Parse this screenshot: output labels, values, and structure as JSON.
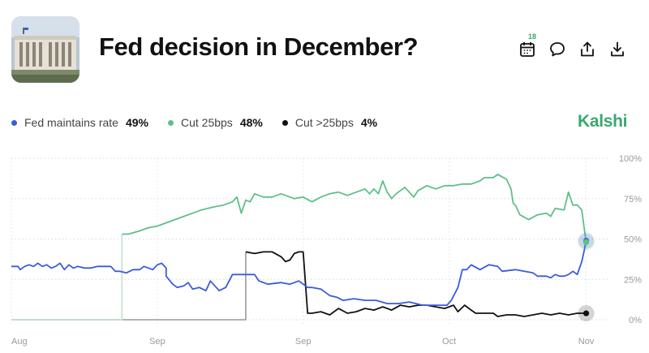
{
  "header": {
    "title": "Fed decision in December?",
    "calendar_badge": "18",
    "thumbnail_icon": "federal-reserve-building-photo"
  },
  "toolbar": {
    "icons": [
      "calendar-icon",
      "comment-icon",
      "share-icon",
      "download-icon"
    ]
  },
  "legend": [
    {
      "name": "Fed maintains rate",
      "value": "49%",
      "color": "#3b5bdb"
    },
    {
      "name": "Cut 25bps",
      "value": "48%",
      "color": "#5fbf8a"
    },
    {
      "name": "Cut >25bps",
      "value": "4%",
      "color": "#111111"
    }
  ],
  "brand": "Kalshi",
  "chart_data": {
    "type": "line",
    "title": "",
    "xlabel": "",
    "ylabel": "",
    "x_ticks": [
      "Aug",
      "Sep",
      "Sep",
      "Oct",
      "Nov"
    ],
    "y_ticks": [
      "0%",
      "25%",
      "50%",
      "75%",
      "100%"
    ],
    "ylim": [
      0,
      100
    ],
    "grid": true,
    "y_axis_side": "right",
    "series": [
      {
        "name": "Fed maintains rate",
        "color": "#3b5bdb",
        "points": [
          [
            0,
            33
          ],
          [
            3,
            33
          ],
          [
            4,
            31
          ],
          [
            6,
            33
          ],
          [
            8,
            34
          ],
          [
            10,
            33
          ],
          [
            12,
            35
          ],
          [
            14,
            33
          ],
          [
            16,
            34
          ],
          [
            18,
            32
          ],
          [
            20,
            33
          ],
          [
            22,
            35
          ],
          [
            24,
            31
          ],
          [
            26,
            34
          ],
          [
            28,
            32
          ],
          [
            30,
            33
          ],
          [
            33,
            32
          ],
          [
            36,
            32
          ],
          [
            39,
            33
          ],
          [
            42,
            33
          ],
          [
            45,
            33
          ],
          [
            47,
            30
          ],
          [
            49,
            30
          ],
          [
            52,
            29
          ],
          [
            55,
            31
          ],
          [
            58,
            31
          ],
          [
            60,
            33
          ],
          [
            62,
            32
          ],
          [
            64,
            31
          ],
          [
            66,
            34
          ],
          [
            68,
            35
          ],
          [
            70,
            32
          ],
          [
            70,
            27
          ],
          [
            73,
            22
          ],
          [
            75,
            20
          ],
          [
            78,
            21
          ],
          [
            80,
            23
          ],
          [
            82,
            19
          ],
          [
            85,
            20
          ],
          [
            88,
            18
          ],
          [
            90,
            24
          ],
          [
            92,
            21
          ],
          [
            94,
            18
          ],
          [
            97,
            20
          ],
          [
            100,
            28
          ],
          [
            105,
            28
          ],
          [
            110,
            28
          ],
          [
            112,
            24
          ],
          [
            116,
            22
          ],
          [
            122,
            23
          ],
          [
            126,
            22
          ],
          [
            130,
            24
          ],
          [
            134,
            20
          ],
          [
            136,
            20
          ],
          [
            140,
            19
          ],
          [
            144,
            15
          ],
          [
            147,
            14
          ],
          [
            150,
            12
          ],
          [
            155,
            13
          ],
          [
            160,
            12
          ],
          [
            165,
            12
          ],
          [
            170,
            10
          ],
          [
            175,
            10
          ],
          [
            180,
            11
          ],
          [
            183,
            10
          ],
          [
            186,
            9
          ],
          [
            190,
            9
          ],
          [
            197,
            9
          ],
          [
            199,
            12
          ],
          [
            202,
            20
          ],
          [
            204,
            31
          ],
          [
            206,
            31
          ],
          [
            208,
            34
          ],
          [
            212,
            31
          ],
          [
            216,
            34
          ],
          [
            220,
            33
          ],
          [
            222,
            30
          ],
          [
            228,
            31
          ],
          [
            236,
            29
          ],
          [
            238,
            27
          ],
          [
            242,
            27
          ],
          [
            244,
            26
          ],
          [
            246,
            28
          ],
          [
            248,
            27
          ],
          [
            250,
            27
          ],
          [
            252,
            28
          ],
          [
            254,
            30
          ],
          [
            256,
            28
          ],
          [
            258,
            36
          ],
          [
            259,
            42
          ],
          [
            260,
            49
          ]
        ]
      },
      {
        "name": "Cut 25bps",
        "color": "#5fbf8a",
        "points": [
          [
            0,
            0
          ],
          [
            50,
            0
          ],
          [
            50,
            53
          ],
          [
            53,
            53
          ],
          [
            58,
            55
          ],
          [
            62,
            57
          ],
          [
            66,
            58
          ],
          [
            70,
            60
          ],
          [
            74,
            62
          ],
          [
            78,
            64
          ],
          [
            82,
            66
          ],
          [
            86,
            68
          ],
          [
            92,
            70
          ],
          [
            96,
            71
          ],
          [
            100,
            73
          ],
          [
            102,
            76
          ],
          [
            104,
            66
          ],
          [
            106,
            74
          ],
          [
            108,
            73
          ],
          [
            110,
            78
          ],
          [
            114,
            76
          ],
          [
            118,
            76
          ],
          [
            122,
            78
          ],
          [
            128,
            75
          ],
          [
            132,
            76
          ],
          [
            136,
            73
          ],
          [
            140,
            76
          ],
          [
            144,
            78
          ],
          [
            148,
            79
          ],
          [
            152,
            77
          ],
          [
            156,
            79
          ],
          [
            160,
            81
          ],
          [
            162,
            78
          ],
          [
            164,
            81
          ],
          [
            166,
            78
          ],
          [
            168,
            86
          ],
          [
            170,
            79
          ],
          [
            172,
            75
          ],
          [
            174,
            78
          ],
          [
            178,
            82
          ],
          [
            180,
            79
          ],
          [
            182,
            76
          ],
          [
            184,
            80
          ],
          [
            188,
            83
          ],
          [
            192,
            81
          ],
          [
            196,
            83
          ],
          [
            200,
            83
          ],
          [
            204,
            84
          ],
          [
            208,
            84
          ],
          [
            212,
            86
          ],
          [
            214,
            88
          ],
          [
            218,
            88
          ],
          [
            220,
            90
          ],
          [
            224,
            87
          ],
          [
            226,
            81
          ],
          [
            227,
            72
          ],
          [
            228,
            71
          ],
          [
            230,
            65
          ],
          [
            234,
            62
          ],
          [
            238,
            65
          ],
          [
            242,
            66
          ],
          [
            244,
            64
          ],
          [
            246,
            69
          ],
          [
            250,
            68
          ],
          [
            252,
            79
          ],
          [
            254,
            71
          ],
          [
            256,
            71
          ],
          [
            258,
            68
          ],
          [
            260,
            48
          ]
        ]
      },
      {
        "name": "Cut >25bps",
        "color": "#111111",
        "points": [
          [
            0,
            0
          ],
          [
            106,
            0
          ],
          [
            106,
            42
          ],
          [
            110,
            41
          ],
          [
            114,
            42
          ],
          [
            118,
            42
          ],
          [
            122,
            39
          ],
          [
            124,
            36
          ],
          [
            126,
            37
          ],
          [
            128,
            41
          ],
          [
            130,
            42
          ],
          [
            132,
            42
          ],
          [
            134,
            4
          ],
          [
            136,
            4
          ],
          [
            140,
            5
          ],
          [
            144,
            3
          ],
          [
            148,
            7
          ],
          [
            152,
            4
          ],
          [
            156,
            5
          ],
          [
            160,
            7
          ],
          [
            164,
            6
          ],
          [
            168,
            8
          ],
          [
            172,
            6
          ],
          [
            176,
            9
          ],
          [
            180,
            8
          ],
          [
            184,
            9
          ],
          [
            188,
            9
          ],
          [
            192,
            8
          ],
          [
            196,
            7
          ],
          [
            200,
            9
          ],
          [
            202,
            5
          ],
          [
            205,
            9
          ],
          [
            208,
            6
          ],
          [
            210,
            4
          ],
          [
            214,
            4
          ],
          [
            218,
            4
          ],
          [
            220,
            2
          ],
          [
            224,
            3
          ],
          [
            228,
            3
          ],
          [
            232,
            2
          ],
          [
            236,
            3
          ],
          [
            240,
            4
          ],
          [
            244,
            3
          ],
          [
            248,
            4
          ],
          [
            252,
            3
          ],
          [
            256,
            4
          ],
          [
            260,
            4
          ]
        ]
      }
    ],
    "x_domain": [
      0,
      262
    ],
    "x_tick_positions": [
      0,
      66,
      132,
      198,
      260
    ]
  }
}
